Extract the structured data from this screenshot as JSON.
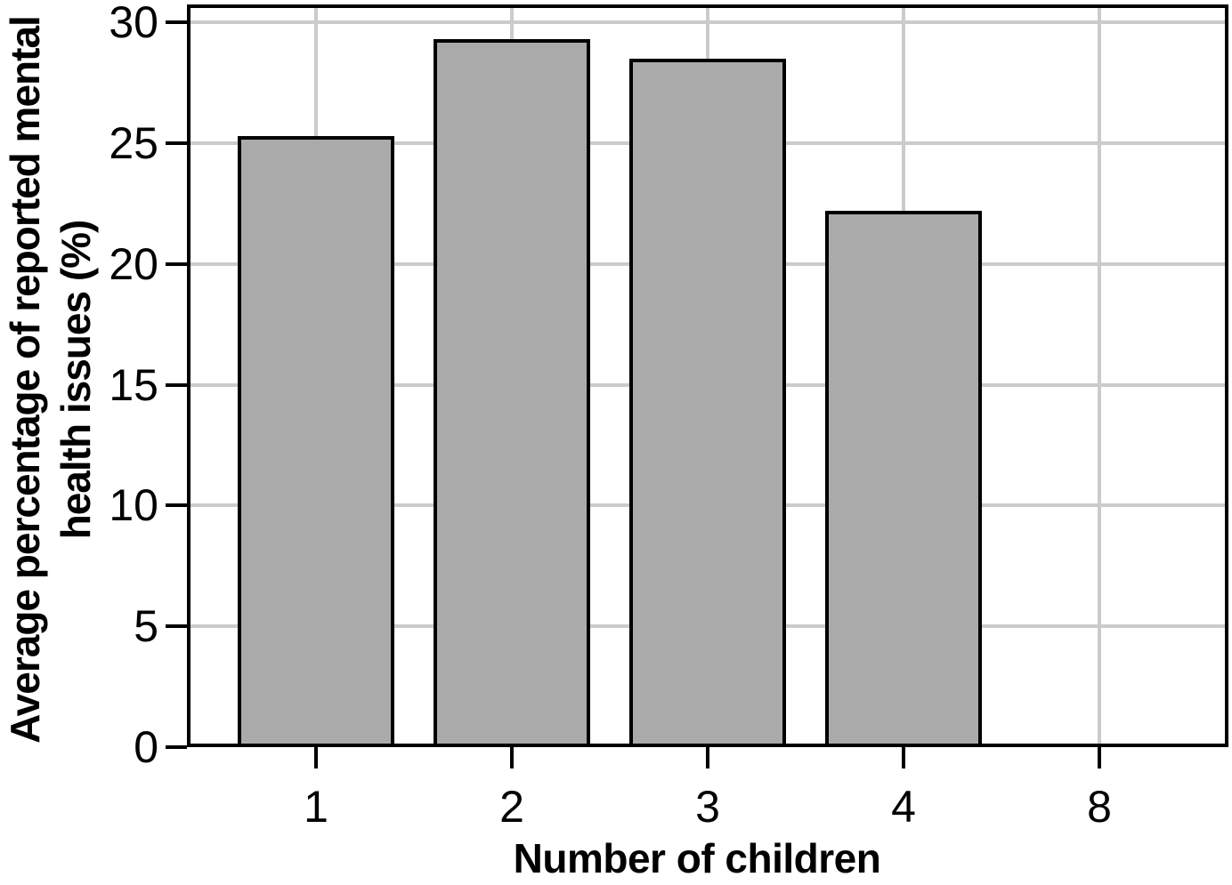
{
  "chart_data": {
    "type": "bar",
    "categories": [
      "1",
      "2",
      "3",
      "4",
      "8"
    ],
    "values": [
      25.3,
      29.3,
      28.5,
      22.2,
      0
    ],
    "title": "",
    "xlabel": "Number of children",
    "ylabel": "Average percentage of reported mental health issues (%)",
    "ylabel_lines": [
      "Average percentage of reported mental",
      "health issues (%)"
    ],
    "yticks": [
      0,
      5,
      10,
      15,
      20,
      25,
      30
    ],
    "ytick_labels": [
      "0",
      "5",
      "10",
      "15",
      "20",
      "25",
      "30"
    ],
    "ylim": [
      0,
      30.75
    ],
    "grid": true,
    "legend": "none",
    "bar_fill_color": "#aaaaaa",
    "bar_edge_color": "#000000",
    "grid_color": "#cbcbcb",
    "axis_color": "#000000",
    "background_color": "#ffffff"
  }
}
